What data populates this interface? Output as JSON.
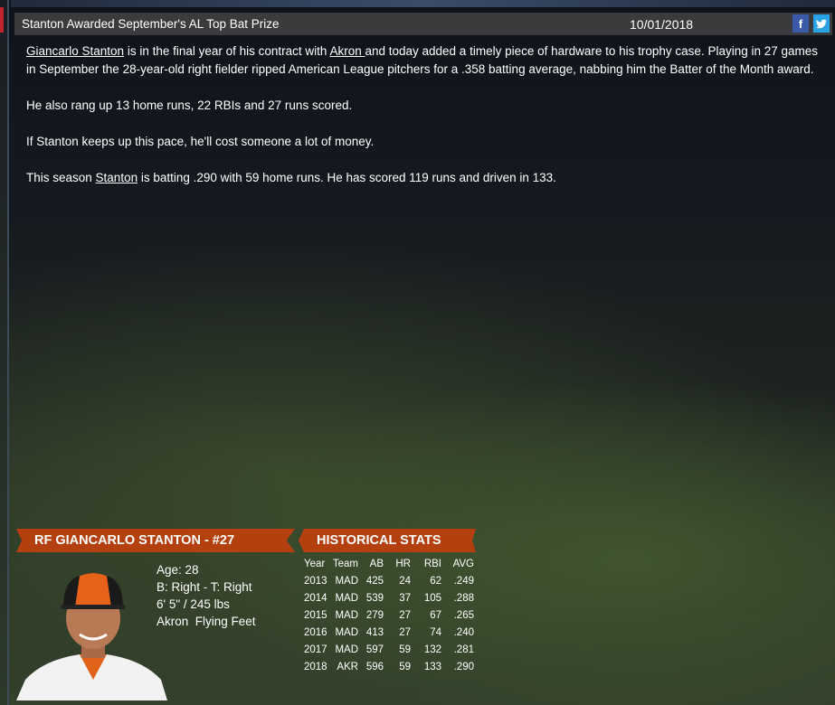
{
  "header": {
    "title": "Stanton Awarded September's AL Top Bat Prize",
    "date": "10/01/2018",
    "facebook": "f",
    "twitter": "t"
  },
  "article": {
    "p1": {
      "link1": "Giancarlo Stanton",
      "t1": " is in the final year of his contract with ",
      "link2": "Akron ",
      "t2": " and today added a timely piece of hardware to his trophy case. Playing in 27 games in September the 28-year-old right fielder ripped American League pitchers for a .358 batting average, nabbing him the Batter of the Month award."
    },
    "p2": "He also rang up 13 home runs, 22 RBIs and 27 runs scored.",
    "p3": "If Stanton keeps up this pace, he'll cost someone a lot of money.",
    "p4": {
      "t1": "This season ",
      "link": "Stanton",
      "t2": " is batting .290 with 59 home runs. He has scored 119 runs and driven in 133."
    }
  },
  "player": {
    "banner": "RF GIANCARLO STANTON - #27",
    "age": "Age: 28",
    "bats_throws": "B: Right - T: Right",
    "size": "6' 5\" / 245 lbs",
    "nickname": "Akron  Flying Feet"
  },
  "stats": {
    "banner": "HISTORICAL STATS",
    "headers": [
      "Year",
      "Team",
      "AB",
      "HR",
      "RBI",
      "AVG"
    ],
    "rows": [
      [
        "2013",
        "MAD",
        "425",
        "24",
        "62",
        ".249"
      ],
      [
        "2014",
        "MAD",
        "539",
        "37",
        "105",
        ".288"
      ],
      [
        "2015",
        "MAD",
        "279",
        "27",
        "67",
        ".265"
      ],
      [
        "2016",
        "MAD",
        "413",
        "27",
        "74",
        ".240"
      ],
      [
        "2017",
        "MAD",
        "597",
        "59",
        "132",
        ".281"
      ],
      [
        "2018",
        "AKR",
        "596",
        "59",
        "133",
        ".290"
      ]
    ]
  },
  "colors": {
    "banner": "#b5400f",
    "header": "#3b3b3d"
  }
}
